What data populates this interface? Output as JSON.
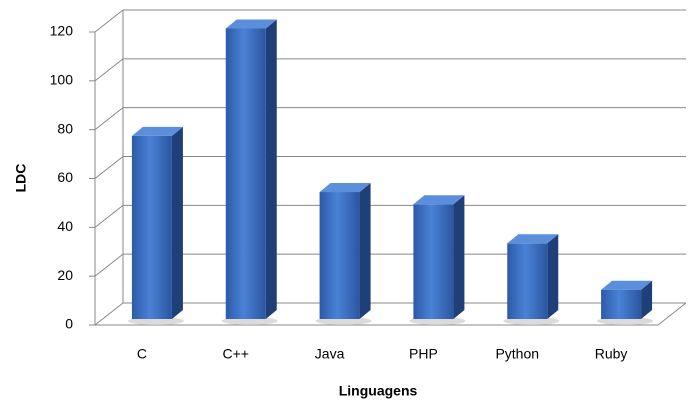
{
  "chart_data": {
    "type": "bar",
    "categories": [
      "C",
      "C++",
      "Java",
      "PHP",
      "Python",
      "Ruby"
    ],
    "values": [
      75,
      119,
      52,
      47,
      31,
      12
    ],
    "color": "#3a6fc4",
    "xlabel": "Linguagens",
    "ylabel": "LDC",
    "ylim": [
      0,
      120
    ],
    "yticks": [
      0,
      20,
      40,
      60,
      80,
      100,
      120
    ],
    "grid": true
  }
}
